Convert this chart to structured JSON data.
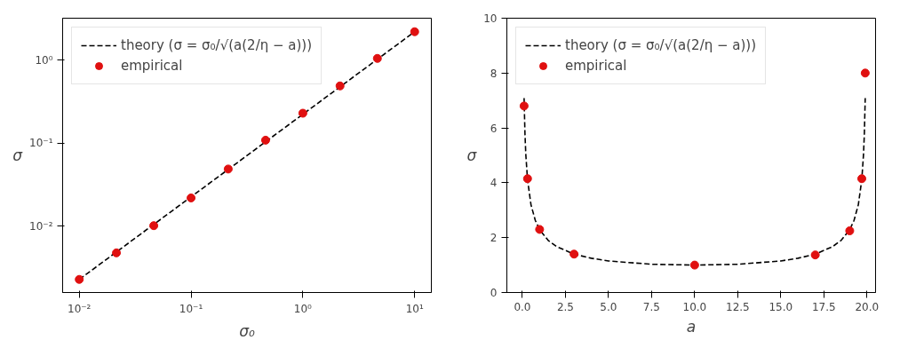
{
  "chart_data": [
    {
      "type": "line",
      "xlabel": "σ₀",
      "ylabel": "σ",
      "log": "xy",
      "grid": false,
      "legend": "top left",
      "xlim": [
        0.0071,
        14.1
      ],
      "ylim": [
        0.0016,
        3.2
      ],
      "xticks": [
        {
          "value": 0.01,
          "label": "10⁻²"
        },
        {
          "value": 0.1,
          "label": "10⁻¹"
        },
        {
          "value": 1,
          "label": "10⁰"
        },
        {
          "value": 10,
          "label": "10¹"
        }
      ],
      "yticks": [
        {
          "value": 0.01,
          "label": "10⁻²"
        },
        {
          "value": 0.1,
          "label": "10⁻¹"
        },
        {
          "value": 1,
          "label": "10⁰"
        }
      ],
      "series": [
        {
          "name": "theory (σ = σ₀/√(a(2/η − a)))",
          "line_style": "dashed",
          "marker": "none",
          "color": "#000000",
          "x": [
            0.01,
            10
          ],
          "values": [
            0.0023,
            2.2
          ]
        },
        {
          "name": "empirical",
          "type": "scatter",
          "marker": "circle",
          "color": "#e01010",
          "x": [
            0.01,
            0.0215,
            0.0464,
            0.1,
            0.215,
            0.464,
            1,
            2.15,
            4.64,
            10
          ],
          "values": [
            0.0023,
            0.0048,
            0.0102,
            0.022,
            0.049,
            0.109,
            0.23,
            0.49,
            1.05,
            2.2
          ]
        }
      ]
    },
    {
      "type": "line",
      "xlabel": "a",
      "ylabel": "σ",
      "grid": false,
      "legend": "top left",
      "xlim": [
        -0.9,
        20.5
      ],
      "ylim": [
        0,
        10
      ],
      "xticks": [
        {
          "value": 0,
          "label": "0.0"
        },
        {
          "value": 2.5,
          "label": "2.5"
        },
        {
          "value": 5,
          "label": "5.0"
        },
        {
          "value": 7.5,
          "label": "7.5"
        },
        {
          "value": 10,
          "label": "10.0"
        },
        {
          "value": 12.5,
          "label": "12.5"
        },
        {
          "value": 15,
          "label": "15.0"
        },
        {
          "value": 17.5,
          "label": "17.5"
        },
        {
          "value": 20,
          "label": "20.0"
        }
      ],
      "yticks": [
        0,
        2,
        4,
        6,
        8,
        10
      ],
      "series": [
        {
          "name": "theory (σ = σ₀/√(a(2/η − a)))",
          "line_style": "dashed",
          "marker": "none",
          "color": "#000000",
          "x": [
            0.1,
            0.15,
            0.2,
            0.3,
            0.5,
            0.75,
            1,
            1.5,
            2,
            3,
            4,
            5,
            7.5,
            10,
            12.5,
            15,
            16,
            17,
            18,
            18.5,
            19,
            19.25,
            19.5,
            19.7,
            19.8,
            19.85,
            19.9
          ],
          "values": [
            7.09,
            5.8,
            5.03,
            4.11,
            3.2,
            2.63,
            2.29,
            1.9,
            1.67,
            1.4,
            1.25,
            1.15,
            1.03,
            1.0,
            1.03,
            1.15,
            1.25,
            1.4,
            1.67,
            1.9,
            2.29,
            2.63,
            3.2,
            4.11,
            5.03,
            5.8,
            7.09
          ]
        },
        {
          "name": "empirical",
          "type": "scatter",
          "marker": "circle",
          "color": "#e01010",
          "x": [
            0.1,
            0.3,
            1,
            3,
            10,
            17,
            19,
            19.7,
            19.9
          ],
          "values": [
            6.8,
            4.15,
            2.3,
            1.4,
            1.0,
            1.37,
            2.25,
            4.15,
            8.0
          ]
        }
      ]
    }
  ]
}
